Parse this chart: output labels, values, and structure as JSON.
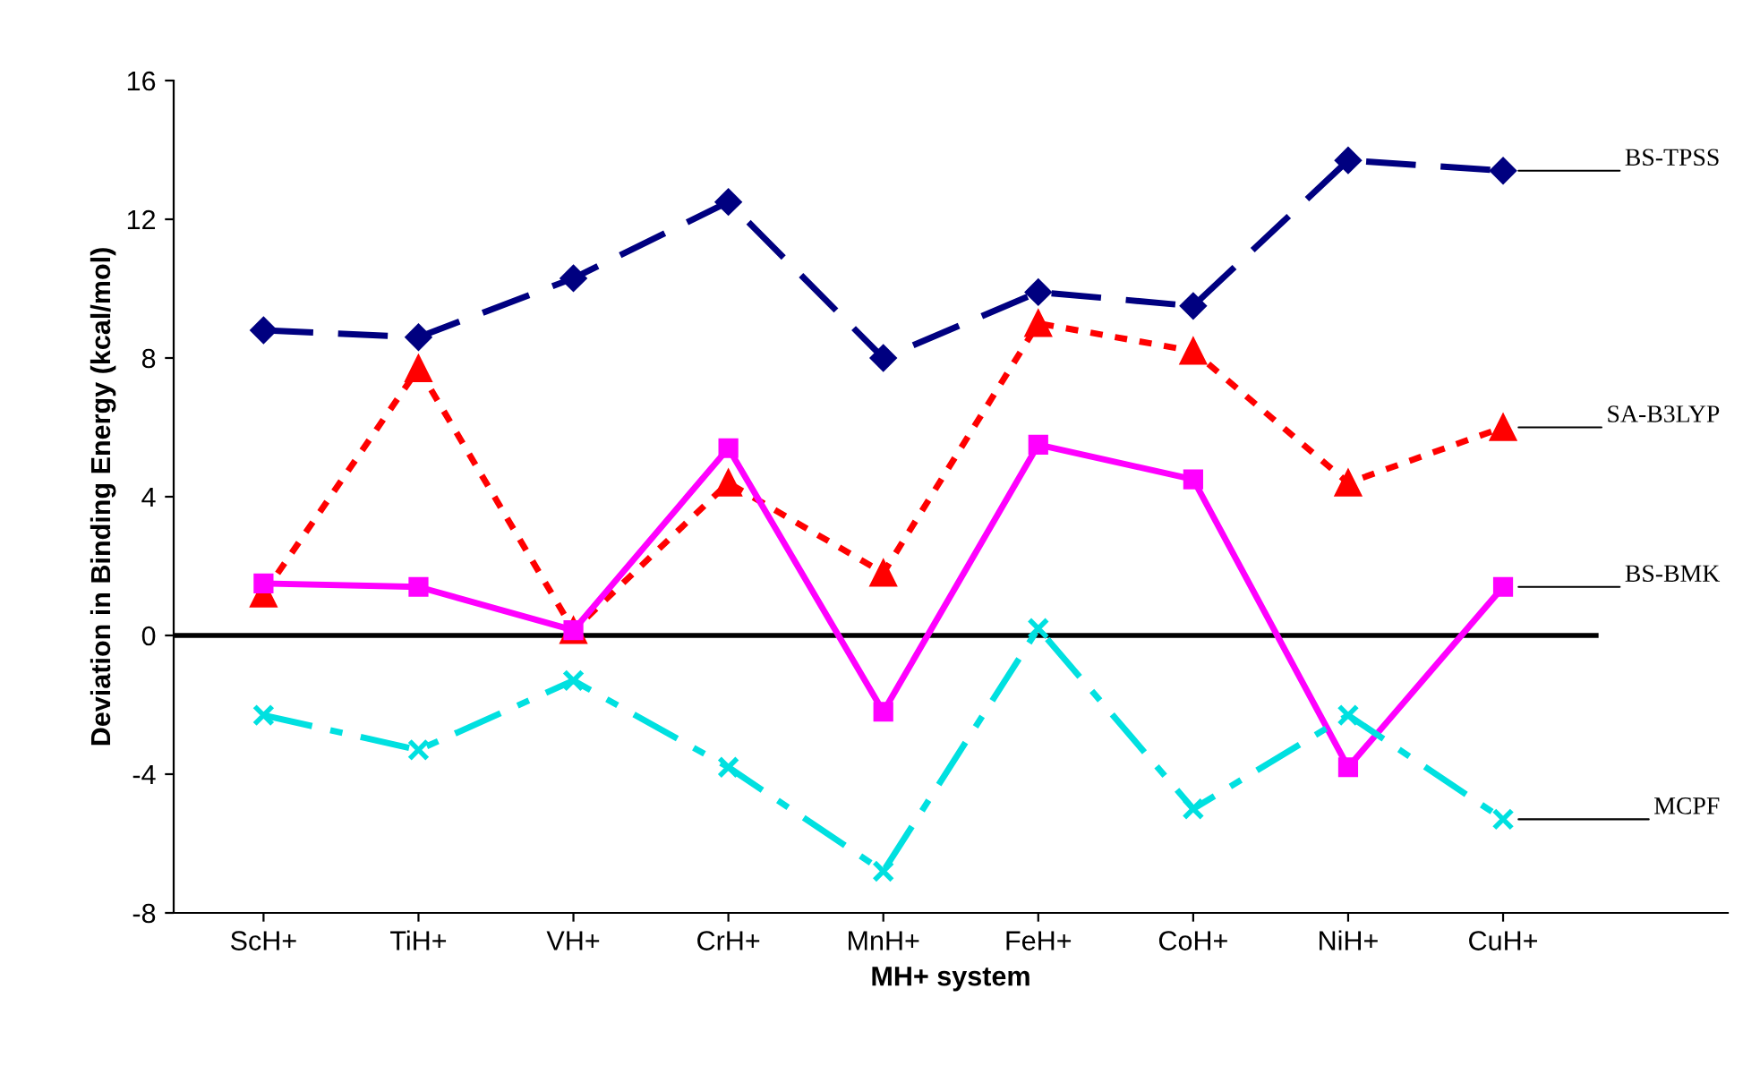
{
  "chart_data": {
    "type": "line",
    "xlabel": "MH+ system",
    "ylabel": "Deviation in Binding Energy (kcal/mol)",
    "categories": [
      "ScH+",
      "TiH+",
      "VH+",
      "CrH+",
      "MnH+",
      "FeH+",
      "CoH+",
      "NiH+",
      "CuH+"
    ],
    "series": [
      {
        "name": "BS-TPSS",
        "color": "#000080",
        "marker": "diamond",
        "line_style": "dashed",
        "values": [
          8.8,
          8.6,
          10.3,
          12.5,
          8.0,
          9.9,
          9.5,
          13.7,
          13.4
        ]
      },
      {
        "name": "SA-B3LYP",
        "color": "#ff0000",
        "marker": "triangle",
        "line_style": "dotted",
        "values": [
          1.2,
          7.7,
          0.15,
          4.4,
          1.8,
          9.0,
          8.2,
          4.4,
          6.0
        ]
      },
      {
        "name": "BS-BMK",
        "color": "#ff00ff",
        "marker": "square",
        "line_style": "solid",
        "values": [
          1.5,
          1.4,
          0.15,
          5.4,
          -2.2,
          5.5,
          4.5,
          -3.8,
          1.4
        ]
      },
      {
        "name": "MCPF",
        "color": "#00e0e0",
        "marker": "cross",
        "line_style": "dashdot",
        "values": [
          -2.3,
          -3.3,
          -1.3,
          -3.8,
          -6.8,
          0.2,
          -5.0,
          -2.3,
          -5.3
        ]
      }
    ],
    "ylim": [
      -8,
      16
    ],
    "yticks": [
      -8,
      -4,
      0,
      4,
      8,
      12,
      16
    ],
    "ref_lines": [
      {
        "axis": "y",
        "value": 0,
        "color": "#000000",
        "line_style": "solid"
      }
    ],
    "grid": false,
    "legend": false
  }
}
